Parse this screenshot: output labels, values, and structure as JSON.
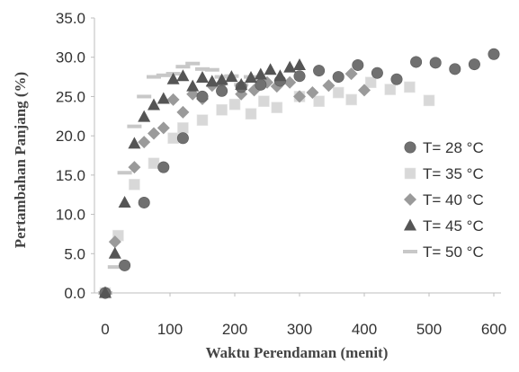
{
  "chart_data": {
    "type": "scatter",
    "xlabel": "Waktu Perendaman (menit)",
    "ylabel": "Pertambahan Panjang (%)",
    "xlim": [
      0,
      600
    ],
    "ylim": [
      0,
      35
    ],
    "xticks": [
      "0",
      "100",
      "200",
      "300",
      "400",
      "500",
      "600"
    ],
    "yticks": [
      "0.0",
      "5.0",
      "10.0",
      "15.0",
      "20.0",
      "25.0",
      "30.0",
      "35.0"
    ],
    "grid": false,
    "legend_position": "right",
    "series": [
      {
        "name": "T= 28 °C",
        "marker": "circle",
        "color": "#707070",
        "points": [
          [
            0,
            0
          ],
          [
            30,
            3.5
          ],
          [
            60,
            11.5
          ],
          [
            90,
            16.0
          ],
          [
            120,
            19.7
          ],
          [
            150,
            25.0
          ],
          [
            180,
            25.7
          ],
          [
            210,
            26.2
          ],
          [
            240,
            26.5
          ],
          [
            270,
            27.0
          ],
          [
            300,
            27.6
          ],
          [
            330,
            28.3
          ],
          [
            360,
            27.5
          ],
          [
            390,
            29.0
          ],
          [
            420,
            28.0
          ],
          [
            450,
            27.2
          ],
          [
            480,
            29.4
          ],
          [
            510,
            29.3
          ],
          [
            540,
            28.5
          ],
          [
            570,
            29.1
          ],
          [
            600,
            30.4
          ]
        ]
      },
      {
        "name": "T= 35 °C",
        "marker": "square",
        "color": "#d8d8d8",
        "points": [
          [
            0,
            0
          ],
          [
            20,
            7.3
          ],
          [
            45,
            13.8
          ],
          [
            75,
            16.5
          ],
          [
            105,
            19.7
          ],
          [
            120,
            21.0
          ],
          [
            150,
            22.0
          ],
          [
            180,
            23.3
          ],
          [
            200,
            24.0
          ],
          [
            225,
            22.8
          ],
          [
            245,
            24.4
          ],
          [
            265,
            23.6
          ],
          [
            300,
            25.0
          ],
          [
            330,
            24.4
          ],
          [
            360,
            25.5
          ],
          [
            380,
            24.6
          ],
          [
            410,
            26.8
          ],
          [
            440,
            25.9
          ],
          [
            470,
            26.2
          ],
          [
            500,
            24.5
          ]
        ]
      },
      {
        "name": "T= 40 °C",
        "marker": "diamond",
        "color": "#9a9a9a",
        "points": [
          [
            0,
            0
          ],
          [
            15,
            6.5
          ],
          [
            45,
            16.0
          ],
          [
            60,
            19.2
          ],
          [
            75,
            20.3
          ],
          [
            90,
            21.0
          ],
          [
            105,
            24.6
          ],
          [
            120,
            23.0
          ],
          [
            135,
            25.3
          ],
          [
            150,
            24.7
          ],
          [
            165,
            26.4
          ],
          [
            180,
            26.7
          ],
          [
            210,
            25.3
          ],
          [
            230,
            25.8
          ],
          [
            250,
            26.8
          ],
          [
            265,
            26.3
          ],
          [
            285,
            26.8
          ],
          [
            300,
            25.0
          ],
          [
            320,
            25.5
          ],
          [
            345,
            26.4
          ],
          [
            380,
            27.9
          ],
          [
            400,
            25.8
          ]
        ]
      },
      {
        "name": "T= 45 °C",
        "marker": "triangle",
        "color": "#555555",
        "points": [
          [
            0,
            0
          ],
          [
            15,
            5.0
          ],
          [
            30,
            11.5
          ],
          [
            45,
            19.0
          ],
          [
            60,
            22.4
          ],
          [
            75,
            23.9
          ],
          [
            90,
            24.7
          ],
          [
            105,
            27.2
          ],
          [
            120,
            27.6
          ],
          [
            135,
            26.3
          ],
          [
            150,
            27.4
          ],
          [
            165,
            26.9
          ],
          [
            180,
            27.1
          ],
          [
            195,
            27.5
          ],
          [
            210,
            26.5
          ],
          [
            225,
            27.4
          ],
          [
            240,
            27.8
          ],
          [
            255,
            28.4
          ],
          [
            270,
            27.6
          ],
          [
            285,
            28.7
          ],
          [
            300,
            29.0
          ]
        ]
      },
      {
        "name": "T= 50 °C",
        "marker": "dash",
        "color": "#c8c8c8",
        "points": [
          [
            0,
            0
          ],
          [
            15,
            3.3
          ],
          [
            30,
            15.3
          ],
          [
            45,
            21.2
          ],
          [
            60,
            25.0
          ],
          [
            75,
            27.5
          ],
          [
            90,
            27.7
          ],
          [
            105,
            27.9
          ],
          [
            120,
            28.8
          ],
          [
            135,
            29.2
          ],
          [
            150,
            28.5
          ],
          [
            165,
            28.4
          ],
          [
            180,
            27.5
          ],
          [
            195,
            27.6
          ],
          [
            210,
            26.5
          ],
          [
            225,
            27.5
          ]
        ]
      }
    ]
  }
}
